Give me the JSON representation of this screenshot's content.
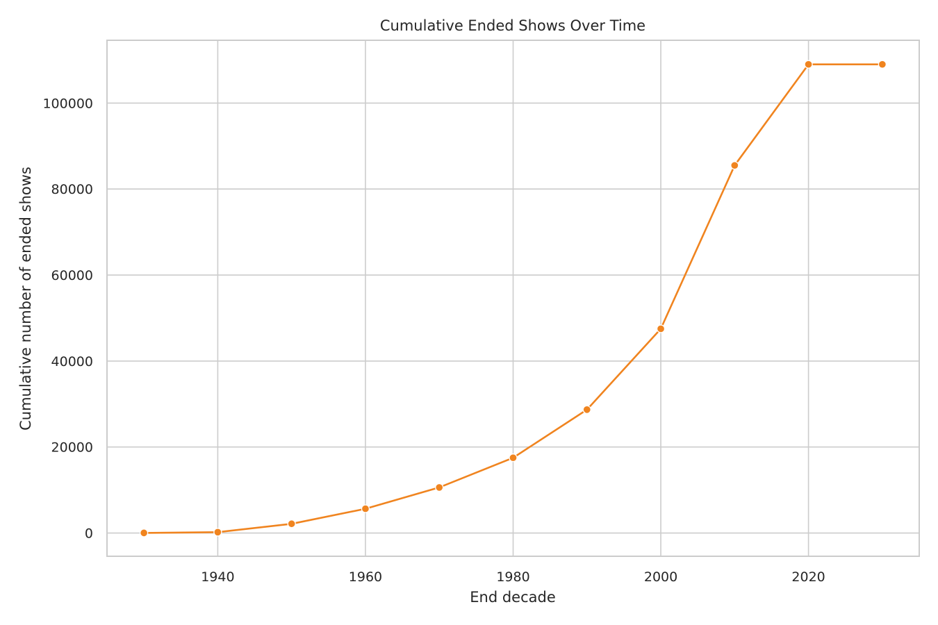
{
  "chart_data": {
    "type": "line",
    "title": "Cumulative Ended Shows Over Time",
    "xlabel": "End decade",
    "ylabel": "Cumulative number of ended shows",
    "xlim": [
      1925,
      2035
    ],
    "ylim": [
      -5400,
      114600
    ],
    "x_ticks": [
      1940,
      1960,
      1980,
      2000,
      2020
    ],
    "y_ticks": [
      0,
      20000,
      40000,
      60000,
      80000,
      100000
    ],
    "grid": true,
    "legend": "none",
    "color": "#f0841f",
    "series": [
      {
        "x": [
          1930,
          1940,
          1950,
          1960,
          1970,
          1980,
          1990,
          2000,
          2010,
          2020,
          2030
        ],
        "values": [
          30,
          200,
          2150,
          5650,
          10600,
          17500,
          28700,
          47500,
          85500,
          109000,
          109000
        ]
      }
    ]
  }
}
